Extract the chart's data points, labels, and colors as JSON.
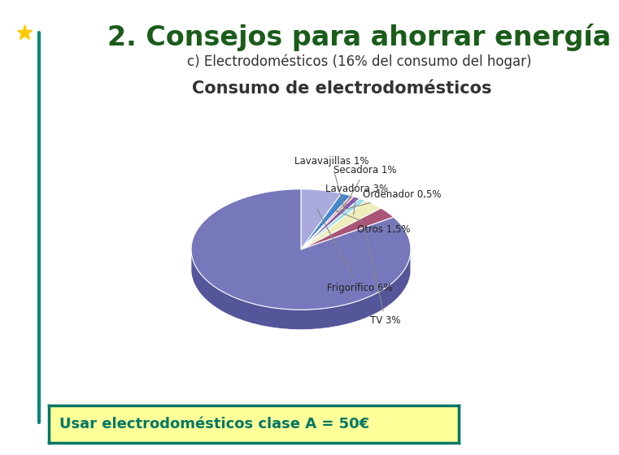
{
  "title_main": "2. Consejos para ahorrar energía",
  "title_sub": "c) Electrodomésticos (16% del consumo del hogar)",
  "pie_title": "Consumo de electrodomésticos",
  "slices": [
    {
      "label": "Frigorífico 6%",
      "value": 6.0,
      "color": "#aaaadd",
      "dark": "#7878aa"
    },
    {
      "label": "Otros 1,5%",
      "value": 1.5,
      "color": "#4488cc",
      "dark": "#336699"
    },
    {
      "label": "Ordenador 0,5%",
      "value": 0.5,
      "color": "#cc8877",
      "dark": "#aa6655"
    },
    {
      "label": "Secadora 1%",
      "value": 1.0,
      "color": "#8855aa",
      "dark": "#663388"
    },
    {
      "label": "Lavavajillas 1%",
      "value": 1.0,
      "color": "#99ddee",
      "dark": "#77bbcc"
    },
    {
      "label": "Lavadora 3%",
      "value": 3.0,
      "color": "#eeeebb",
      "dark": "#cccc99"
    },
    {
      "label": "TV 3%",
      "value": 3.0,
      "color": "#aa5577",
      "dark": "#883355"
    },
    {
      "label": "",
      "value": 84.0,
      "color": "#7777bb",
      "dark": "#555599"
    }
  ],
  "bottom_text": "Usar electrodomésticos clase A = 50€",
  "bottom_bg": "#ffff99",
  "bottom_border": "#007766",
  "bg_color": "#ffffff",
  "title_color": "#1a5c1a",
  "pie_title_color": "#333333",
  "label_fontsize": 8.5,
  "pie_title_fontsize": 15,
  "title_main_fontsize": 24,
  "title_sub_fontsize": 12,
  "startangle": 90
}
